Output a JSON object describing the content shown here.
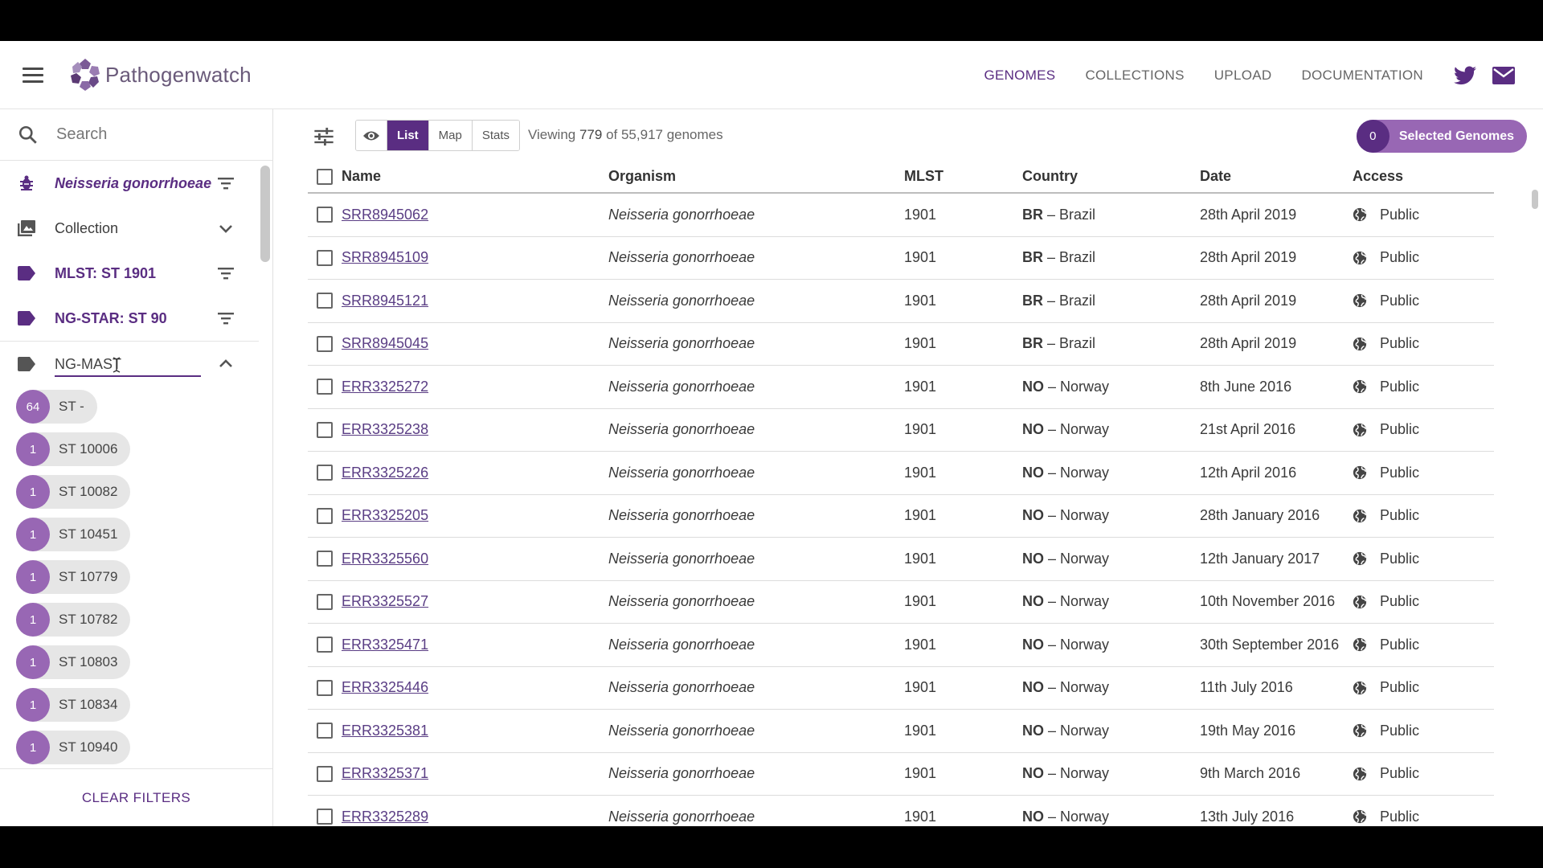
{
  "header": {
    "logo_text": "Pathogenwatch",
    "nav": {
      "genomes": "GENOMES",
      "collections": "COLLECTIONS",
      "upload": "UPLOAD",
      "documentation": "DOCUMENTATION"
    },
    "icons": [
      "menu-icon",
      "twitter-icon",
      "mail-icon"
    ],
    "accent_color": "#5a2d82"
  },
  "sidebar": {
    "search_placeholder": "Search",
    "filters": {
      "organism": "Neisseria gonorrhoeae",
      "collection": "Collection",
      "mlst": "MLST: ST 1901",
      "ngstar": "NG-STAR: ST 90",
      "ngmast": "NG-MAST"
    },
    "chips": [
      {
        "count": "64",
        "label": "ST -"
      },
      {
        "count": "1",
        "label": "ST 10006"
      },
      {
        "count": "1",
        "label": "ST 10082"
      },
      {
        "count": "1",
        "label": "ST 10451"
      },
      {
        "count": "1",
        "label": "ST 10779"
      },
      {
        "count": "1",
        "label": "ST 10782"
      },
      {
        "count": "1",
        "label": "ST 10803"
      },
      {
        "count": "1",
        "label": "ST 10834"
      },
      {
        "count": "1",
        "label": "ST 10940"
      }
    ],
    "clear_filters": "CLEAR FILTERS"
  },
  "toolbar": {
    "views": {
      "list": "List",
      "map": "Map",
      "stats": "Stats"
    },
    "active_view": "List",
    "viewing_prefix": "Viewing",
    "viewing_count": "779",
    "viewing_suffix": "of 55,917 genomes",
    "selected_count": "0",
    "selected_label": "Selected Genomes"
  },
  "table": {
    "headers": {
      "name": "Name",
      "organism": "Organism",
      "mlst": "MLST",
      "country": "Country",
      "date": "Date",
      "access": "Access"
    },
    "rows": [
      {
        "name": "SRR8945062",
        "organism": "Neisseria gonorrhoeae",
        "mlst": "1901",
        "code": "BR",
        "country": "– Brazil",
        "date": "28th April 2019",
        "access": "Public"
      },
      {
        "name": "SRR8945109",
        "organism": "Neisseria gonorrhoeae",
        "mlst": "1901",
        "code": "BR",
        "country": "– Brazil",
        "date": "28th April 2019",
        "access": "Public"
      },
      {
        "name": "SRR8945121",
        "organism": "Neisseria gonorrhoeae",
        "mlst": "1901",
        "code": "BR",
        "country": "– Brazil",
        "date": "28th April 2019",
        "access": "Public"
      },
      {
        "name": "SRR8945045",
        "organism": "Neisseria gonorrhoeae",
        "mlst": "1901",
        "code": "BR",
        "country": "– Brazil",
        "date": "28th April 2019",
        "access": "Public"
      },
      {
        "name": "ERR3325272",
        "organism": "Neisseria gonorrhoeae",
        "mlst": "1901",
        "code": "NO",
        "country": "– Norway",
        "date": "8th June 2016",
        "access": "Public"
      },
      {
        "name": "ERR3325238",
        "organism": "Neisseria gonorrhoeae",
        "mlst": "1901",
        "code": "NO",
        "country": "– Norway",
        "date": "21st April 2016",
        "access": "Public"
      },
      {
        "name": "ERR3325226",
        "organism": "Neisseria gonorrhoeae",
        "mlst": "1901",
        "code": "NO",
        "country": "– Norway",
        "date": "12th April 2016",
        "access": "Public"
      },
      {
        "name": "ERR3325205",
        "organism": "Neisseria gonorrhoeae",
        "mlst": "1901",
        "code": "NO",
        "country": "– Norway",
        "date": "28th January 2016",
        "access": "Public"
      },
      {
        "name": "ERR3325560",
        "organism": "Neisseria gonorrhoeae",
        "mlst": "1901",
        "code": "NO",
        "country": "– Norway",
        "date": "12th January 2017",
        "access": "Public"
      },
      {
        "name": "ERR3325527",
        "organism": "Neisseria gonorrhoeae",
        "mlst": "1901",
        "code": "NO",
        "country": "– Norway",
        "date": "10th November 2016",
        "access": "Public"
      },
      {
        "name": "ERR3325471",
        "organism": "Neisseria gonorrhoeae",
        "mlst": "1901",
        "code": "NO",
        "country": "– Norway",
        "date": "30th September 2016",
        "access": "Public"
      },
      {
        "name": "ERR3325446",
        "organism": "Neisseria gonorrhoeae",
        "mlst": "1901",
        "code": "NO",
        "country": "– Norway",
        "date": "11th July 2016",
        "access": "Public"
      },
      {
        "name": "ERR3325381",
        "organism": "Neisseria gonorrhoeae",
        "mlst": "1901",
        "code": "NO",
        "country": "– Norway",
        "date": "19th May 2016",
        "access": "Public"
      },
      {
        "name": "ERR3325371",
        "organism": "Neisseria gonorrhoeae",
        "mlst": "1901",
        "code": "NO",
        "country": "– Norway",
        "date": "9th March 2016",
        "access": "Public"
      },
      {
        "name": "ERR3325289",
        "organism": "Neisseria gonorrhoeae",
        "mlst": "1901",
        "code": "NO",
        "country": "– Norway",
        "date": "13th July 2016",
        "access": "Public"
      }
    ]
  }
}
